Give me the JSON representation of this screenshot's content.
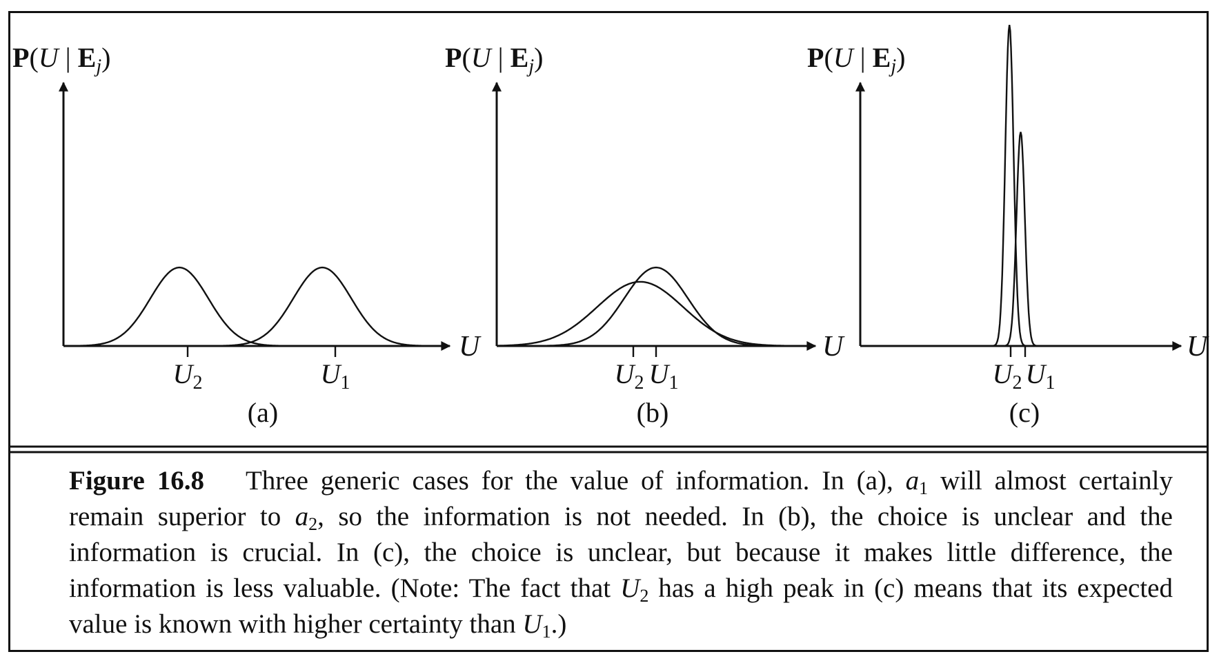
{
  "y_axis_label": {
    "bold": "P",
    "open": "(",
    "var": "U",
    "bar": " | ",
    "E": "E",
    "sub": "j",
    "close": ")"
  },
  "x_axis_label": "U",
  "panels": [
    {
      "id": "a",
      "label": "(a)",
      "ticks": [
        "U",
        "U"
      ],
      "tick_subs": [
        "2",
        "1"
      ]
    },
    {
      "id": "b",
      "label": "(b)",
      "ticks": [
        "U",
        "U"
      ],
      "tick_subs": [
        "2",
        "1"
      ]
    },
    {
      "id": "c",
      "label": "(c)",
      "ticks": [
        "U",
        "U"
      ],
      "tick_subs": [
        "2",
        "1"
      ]
    }
  ],
  "caption": {
    "label": "Figure 16.8",
    "t1": "Three generic cases for the value of information. In (a), ",
    "a": "a",
    "s1": "1",
    "t2": " will almost certainly remain superior to ",
    "s2": "2",
    "t3": ", so the information is not needed. In (b), the choice is unclear and the information is crucial. In (c), the choice is unclear, but because it makes little difference, the information is less valuable. (Note: The fact that ",
    "U": "U",
    "s3": "2",
    "t4": " has a high peak in (c) means that its expected value is known with higher certainty than ",
    "s4": "1",
    "t5": ".)"
  },
  "chart_data": [
    {
      "type": "line",
      "panel": "(a)",
      "xlabel": "U",
      "ylabel": "P(U | Ej)",
      "series": [
        {
          "name": "U2",
          "mean": 0.3,
          "sd": 0.075,
          "peak": 0.33
        },
        {
          "name": "U1",
          "mean": 0.67,
          "sd": 0.075,
          "peak": 0.33
        }
      ]
    },
    {
      "type": "line",
      "panel": "(b)",
      "xlabel": "U",
      "ylabel": "P(U | Ej)",
      "series": [
        {
          "name": "U2",
          "mean": 0.45,
          "sd": 0.135,
          "peak": 0.27
        },
        {
          "name": "U1",
          "mean": 0.5,
          "sd": 0.1,
          "peak": 0.33
        }
      ]
    },
    {
      "type": "line",
      "panel": "(c)",
      "xlabel": "U",
      "ylabel": "P(U | Ej)",
      "series": [
        {
          "name": "U2",
          "mean": 0.465,
          "sd": 0.013,
          "peak": 1.35
        },
        {
          "name": "U1",
          "mean": 0.5,
          "sd": 0.013,
          "peak": 0.9
        }
      ]
    }
  ]
}
